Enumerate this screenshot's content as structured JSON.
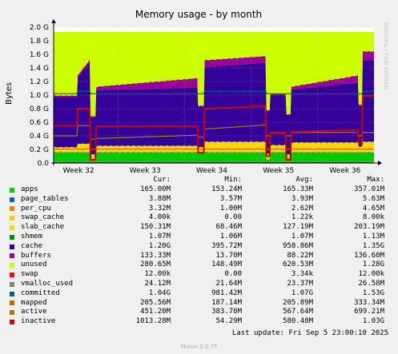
{
  "chart_data": {
    "type": "area",
    "title": "Memory usage - by month",
    "ylabel": "Bytes",
    "watermark": "RRDTOOL / TOBI OETIKER",
    "ylim": [
      0,
      2.0
    ],
    "y_unit": "G",
    "y_ticks": [
      "0.0",
      "0.2 G",
      "0.4 G",
      "0.6 G",
      "0.8 G",
      "1.0 G",
      "1.2 G",
      "1.4 G",
      "1.6 G",
      "1.8 G",
      "2.0 G"
    ],
    "x_ticks": [
      "Week 32",
      "Week 33",
      "Week 34",
      "Week 35",
      "Week 36"
    ],
    "grid": true,
    "background_color": "#ffffff",
    "stack_order": [
      "apps",
      "page_tables",
      "per_cpu",
      "swap_cache",
      "slab_cache",
      "shmem",
      "cache",
      "buffers",
      "unused"
    ],
    "line_series": [
      "swap",
      "vmalloc_used",
      "committed",
      "mapped",
      "active",
      "inactive"
    ],
    "series": [
      {
        "name": "apps",
        "color": "#00cc00",
        "cur": "165.00M",
        "min": "153.24M",
        "avg": "165.33M",
        "max": "357.01M"
      },
      {
        "name": "page_tables",
        "color": "#0066b3",
        "cur": "3.88M",
        "min": "3.57M",
        "avg": "3.93M",
        "max": "5.63M"
      },
      {
        "name": "per_cpu",
        "color": "#ff8000",
        "cur": "3.32M",
        "min": "1.00M",
        "avg": "2.62M",
        "max": "4.65M"
      },
      {
        "name": "swap_cache",
        "color": "#ffcc00",
        "cur": "4.00k",
        "min": "0.00",
        "avg": "1.22k",
        "max": "8.00k"
      },
      {
        "name": "slab_cache",
        "color": "#ffd700",
        "cur": "150.31M",
        "min": "68.46M",
        "avg": "127.19M",
        "max": "203.19M"
      },
      {
        "name": "shmem",
        "color": "#008f00",
        "cur": "1.07M",
        "min": "1.06M",
        "avg": "1.07M",
        "max": "1.13M"
      },
      {
        "name": "cache",
        "color": "#330099",
        "cur": "1.20G",
        "min": "395.72M",
        "avg": "958.86M",
        "max": "1.35G"
      },
      {
        "name": "buffers",
        "color": "#990099",
        "cur": "133.33M",
        "min": "13.70M",
        "avg": "88.22M",
        "max": "136.60M"
      },
      {
        "name": "unused",
        "color": "#ccff00",
        "cur": "280.65M",
        "min": "148.49M",
        "avg": "620.53M",
        "max": "1.28G"
      },
      {
        "name": "swap",
        "color": "#ff0000",
        "cur": "12.00k",
        "min": "0.00",
        "avg": "3.34k",
        "max": "12.00k"
      },
      {
        "name": "vmalloc_used",
        "color": "#808080",
        "cur": "24.12M",
        "min": "21.64M",
        "avg": "23.37M",
        "max": "26.58M"
      },
      {
        "name": "committed",
        "color": "#005f87",
        "cur": "1.04G",
        "min": "981.42M",
        "avg": "1.07G",
        "max": "1.53G"
      },
      {
        "name": "mapped",
        "color": "#cc6600",
        "cur": "205.56M",
        "min": "187.14M",
        "avg": "205.89M",
        "max": "333.34M"
      },
      {
        "name": "active",
        "color": "#a08000",
        "cur": "451.20M",
        "min": "383.70M",
        "avg": "567.64M",
        "max": "699.21M"
      },
      {
        "name": "inactive",
        "color": "#cc0000",
        "cur": "1013.28M",
        "min": "54.29M",
        "avg": "580.48M",
        "max": "1.03G"
      }
    ],
    "approx_values_G": {
      "note": "",
      "x": [
        0,
        1,
        2,
        3,
        4,
        5,
        6,
        7,
        8,
        9,
        10,
        11,
        12,
        13,
        14,
        15,
        16,
        17,
        18,
        19,
        20,
        21,
        22,
        23,
        24,
        25,
        26,
        27,
        28,
        29,
        30,
        31,
        32,
        33,
        34,
        35,
        36,
        37,
        38,
        39,
        40,
        41,
        42,
        43,
        44,
        45,
        46,
        47,
        48,
        49,
        50,
        51,
        52,
        53,
        54,
        55,
        56,
        57,
        58,
        59,
        60,
        61,
        62,
        63,
        64,
        65,
        66,
        67,
        68,
        69,
        70,
        71,
        72,
        73,
        74,
        75,
        76,
        77,
        78,
        79,
        80,
        81,
        82,
        83,
        84,
        85,
        86,
        87,
        88,
        89,
        90,
        91,
        92,
        93,
        94,
        95,
        96,
        97,
        98,
        99,
        100,
        101,
        102,
        103,
        104,
        105,
        106,
        107,
        108,
        109,
        110,
        111,
        112,
        113,
        114,
        115,
        116,
        117,
        118,
        119,
        120,
        121,
        122,
        123,
        124,
        125,
        126,
        127,
        128,
        129,
        130,
        131,
        132,
        133,
        134,
        135,
        136,
        137,
        138,
        139,
        140,
        141,
        142,
        143,
        144,
        145,
        146,
        147,
        148,
        149,
        150,
        151,
        152,
        153,
        154,
        155,
        156,
        157,
        158,
        159,
        160,
        161,
        162,
        163,
        164,
        165,
        166,
        167,
        168,
        169,
        170,
        171,
        172,
        173,
        174,
        175,
        176,
        177,
        178,
        179,
        180,
        181,
        182,
        183,
        184,
        185,
        186,
        187,
        188,
        189,
        190,
        191,
        192,
        193,
        194,
        195,
        196,
        197,
        198,
        199,
        200,
        201,
        202,
        203,
        204,
        205,
        206,
        207,
        208,
        209,
        210,
        211,
        212,
        213,
        214,
        215,
        216,
        217,
        218,
        219,
        220,
        221,
        222,
        223,
        224,
        225,
        226,
        227,
        228,
        229,
        230,
        231,
        232,
        233,
        234,
        235,
        236,
        237,
        238,
        239,
        240,
        241,
        242,
        243,
        244,
        245,
        246,
        247,
        248,
        249,
        250,
        251,
        252,
        253,
        254,
        255,
        256,
        257,
        258,
        259,
        260,
        261,
        262,
        263,
        264,
        265,
        266,
        267,
        268,
        269,
        270,
        271,
        272,
        273,
        274,
        275,
        276,
        277,
        278,
        279,
        280,
        281,
        282,
        283,
        284,
        285,
        286,
        287,
        288,
        289,
        290,
        291,
        292,
        293,
        294,
        295,
        296,
        297,
        298,
        299,
        300,
        301,
        302,
        303,
        304,
        305,
        306,
        307,
        308,
        309,
        310,
        311,
        312,
        313,
        314,
        315,
        316,
        317,
        318,
        319,
        320,
        321,
        322,
        323,
        324,
        325,
        326,
        327,
        328,
        329,
        330,
        331,
        332,
        333,
        334,
        335,
        336,
        337,
        338,
        339,
        340,
        341,
        342,
        343,
        344,
        345,
        346,
        347,
        348,
        349,
        350,
        351,
        352,
        353,
        354,
        355,
        356,
        357,
        358,
        359,
        360,
        361,
        362,
        363,
        364,
        365,
        366,
        367,
        368,
        369,
        370,
        371,
        372,
        373,
        374,
        375,
        376,
        377,
        378,
        379,
        380,
        381,
        382,
        383,
        384,
        385,
        386,
        387,
        388,
        389,
        390,
        391,
        392,
        393,
        394,
        395,
        396,
        397,
        398,
        399
      ]
    }
  },
  "legend_header": {
    "cur": "Cur:",
    "min": "Min:",
    "avg": "Avg:",
    "max": "Max:"
  },
  "last_update": "Last update:  Fri Sep  5 23:00:10 2025",
  "munin_version": "Munin 2.0.75"
}
